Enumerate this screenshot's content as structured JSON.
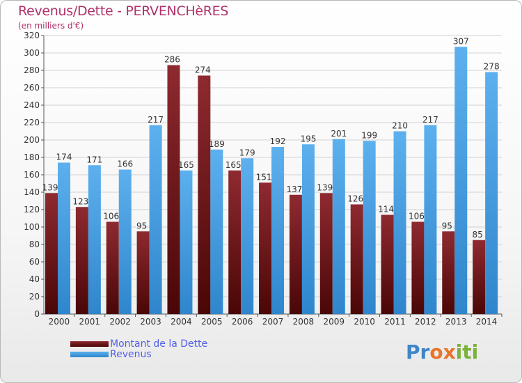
{
  "header": {
    "title": "Revenus/Dette - PERVENCHèRES",
    "subtitle": "(en milliers d'€)"
  },
  "legend": {
    "debt_label": "Montant de la Dette",
    "revenue_label": "Revenus"
  },
  "logo": {
    "letters": [
      "P",
      "r",
      "o",
      "x",
      "i",
      "t",
      "i"
    ]
  },
  "colors": {
    "debt": "#6b1218",
    "revenue": "#4a9fe0",
    "title": "#b0306a",
    "legend_text": "#4f5ee8"
  },
  "chart_data": {
    "type": "bar",
    "title": "Revenus/Dette - PERVENCHèRES",
    "ylabel": "(en milliers d'€)",
    "xlabel": "",
    "ylim": [
      0,
      320
    ],
    "yticks": [
      0,
      20,
      40,
      60,
      80,
      100,
      120,
      140,
      160,
      180,
      200,
      220,
      240,
      260,
      280,
      300,
      320
    ],
    "categories": [
      "2000",
      "2001",
      "2002",
      "2003",
      "2004",
      "2005",
      "2006",
      "2007",
      "2008",
      "2009",
      "2010",
      "2011",
      "2012",
      "2013",
      "2014"
    ],
    "series": [
      {
        "name": "Montant de la Dette",
        "values": [
          139,
          123,
          106,
          95,
          286,
          274,
          165,
          151,
          137,
          139,
          126,
          114,
          106,
          95,
          85
        ]
      },
      {
        "name": "Revenus",
        "values": [
          174,
          171,
          166,
          217,
          165,
          189,
          179,
          192,
          195,
          201,
          199,
          210,
          217,
          307,
          278
        ]
      }
    ],
    "grid": true,
    "legend_position": "bottom-left"
  }
}
